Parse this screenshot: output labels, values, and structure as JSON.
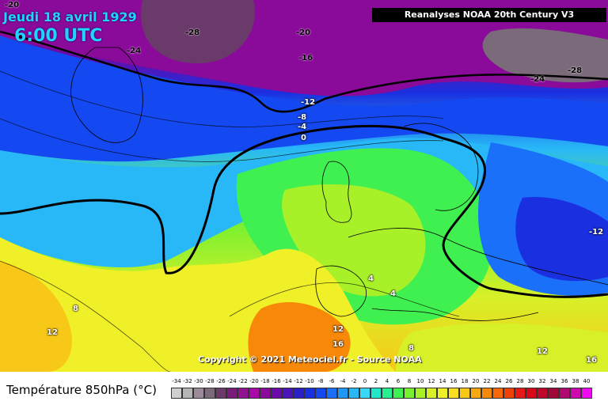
{
  "header": {
    "date": "Jeudi 18 avril 1929",
    "time": "6:00 UTC",
    "source": "Reanalyses NOAA 20th Century V3",
    "copyright": "Copyright © 2021 Meteociel.fr - Source NOAA"
  },
  "legend": {
    "title": "Température 850hPa (°C)",
    "ticks": [
      "-34",
      "-32",
      "-30",
      "-28",
      "-26",
      "-24",
      "-22",
      "-20",
      "-18",
      "-16",
      "-14",
      "-12",
      "-10",
      "-8",
      "-6",
      "-4",
      "-2",
      "0",
      "2",
      "4",
      "6",
      "8",
      "10",
      "12",
      "14",
      "16",
      "18",
      "20",
      "22",
      "24",
      "26",
      "28",
      "30",
      "32",
      "34",
      "36",
      "38",
      "40"
    ],
    "colors": [
      "#cfcfcf",
      "#b5b5b5",
      "#9a8a9a",
      "#7a6a7a",
      "#6a3a6a",
      "#7a1c7a",
      "#901490",
      "#a80aa8",
      "#8a0a9a",
      "#6a0aa8",
      "#4a14b8",
      "#2a20c8",
      "#1a30e0",
      "#1448f0",
      "#1a70f8",
      "#2098f8",
      "#28b8f8",
      "#38d8f8",
      "#20e8c8",
      "#28f090",
      "#40f050",
      "#78f030",
      "#a8f028",
      "#d8f028",
      "#f0f028",
      "#f8e020",
      "#f8c818",
      "#f8a810",
      "#f88808",
      "#f86808",
      "#f04008",
      "#e81818",
      "#d80818",
      "#c00828",
      "#a00838",
      "#b00870",
      "#d008b0",
      "#f008f0"
    ]
  },
  "isotherm_labels": [
    {
      "text": "-20"
    },
    {
      "text": "-28"
    },
    {
      "text": "-24"
    },
    {
      "text": "-20"
    },
    {
      "text": "-16"
    },
    {
      "text": "-12"
    },
    {
      "text": "-8"
    },
    {
      "text": "-4"
    },
    {
      "text": "0"
    },
    {
      "text": "-24"
    },
    {
      "text": "-28"
    },
    {
      "text": "-12"
    },
    {
      "text": "4"
    },
    {
      "text": "4"
    },
    {
      "text": "8"
    },
    {
      "text": "12"
    },
    {
      "text": "12"
    },
    {
      "text": "16"
    },
    {
      "text": "8"
    },
    {
      "text": "12"
    },
    {
      "text": "16"
    }
  ]
}
